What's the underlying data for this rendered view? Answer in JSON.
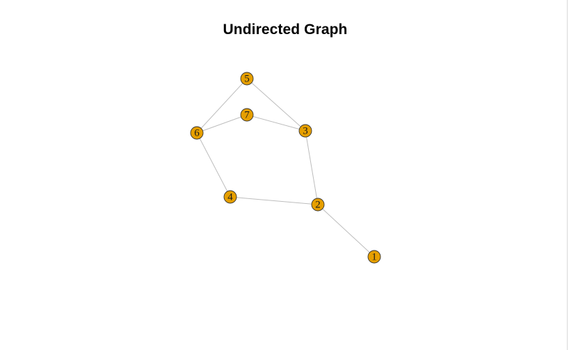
{
  "title": "Undirected Graph",
  "colors": {
    "node_fill": "#E69F00",
    "node_stroke": "#333333",
    "edge": "#BDBDBD",
    "background": "#FFFFFF"
  },
  "graph": {
    "directed": false,
    "nodes": [
      {
        "id": "1",
        "label": "1"
      },
      {
        "id": "2",
        "label": "2"
      },
      {
        "id": "3",
        "label": "3"
      },
      {
        "id": "4",
        "label": "4"
      },
      {
        "id": "5",
        "label": "5"
      },
      {
        "id": "6",
        "label": "6"
      },
      {
        "id": "7",
        "label": "7"
      }
    ],
    "edges": [
      {
        "source": "1",
        "target": "2"
      },
      {
        "source": "2",
        "target": "3"
      },
      {
        "source": "2",
        "target": "4"
      },
      {
        "source": "3",
        "target": "5"
      },
      {
        "source": "3",
        "target": "7"
      },
      {
        "source": "4",
        "target": "6"
      },
      {
        "source": "5",
        "target": "6"
      },
      {
        "source": "6",
        "target": "7"
      }
    ]
  }
}
